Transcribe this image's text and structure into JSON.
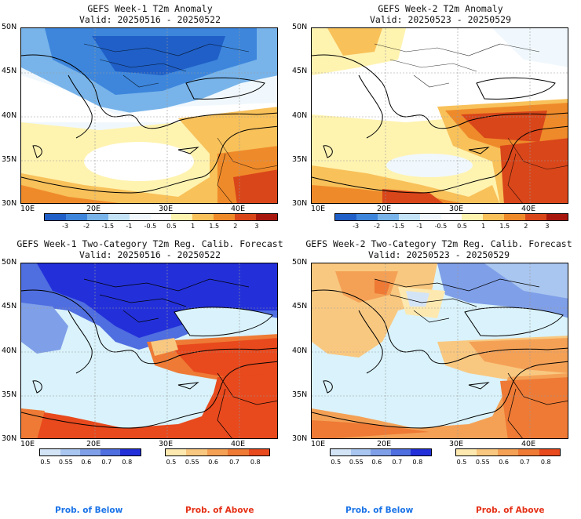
{
  "colors": {
    "anom_scale": [
      "#1f5fc7",
      "#3d86dc",
      "#78b4ea",
      "#c4e3f7",
      "#f0f8fd",
      "#ffffff",
      "#fff3b0",
      "#f8c15a",
      "#ef8a2a",
      "#d9461a",
      "#a8170e"
    ],
    "below_scale": [
      "#d4e4f7",
      "#a9c6f0",
      "#7f9fe8",
      "#4f6ee0",
      "#2330d9"
    ],
    "above_scale": [
      "#fde9b0",
      "#f9c880",
      "#f4a156",
      "#ee7a35",
      "#e8491d"
    ],
    "sea": "#d9f2fb",
    "below_label": "#1a73e8",
    "above_label": "#e53016"
  },
  "panels": [
    {
      "title_line1": "GEFS Week-1 T2m Anomaly",
      "title_line2": "Valid: 20250516 - 20250522"
    },
    {
      "title_line1": "GEFS Week-2 T2m Anomaly",
      "title_line2": "Valid: 20250523 - 20250529"
    },
    {
      "title_line1": "GEFS Week-1 Two-Category T2m Reg. Calib. Forecast",
      "title_line2": "Valid: 20250516 - 20250522"
    },
    {
      "title_line1": "GEFS Week-2 Two-Category T2m Reg. Calib. Forecast",
      "title_line2": "Valid: 20250523 - 20250529"
    }
  ],
  "lat_labels": [
    "50N",
    "45N",
    "40N",
    "35N",
    "30N"
  ],
  "lon_labels": [
    "10E",
    "20E",
    "30E",
    "40E"
  ],
  "anom_ticks": [
    "-3",
    "-2",
    "-1.5",
    "-1",
    "-0.5",
    "0.5",
    "1",
    "1.5",
    "2",
    "3"
  ],
  "prob_ticks": [
    "0.5",
    "0.55",
    "0.6",
    "0.7",
    "0.8"
  ],
  "legend": {
    "below": "Prob. of Below",
    "above": "Prob. of Above"
  }
}
